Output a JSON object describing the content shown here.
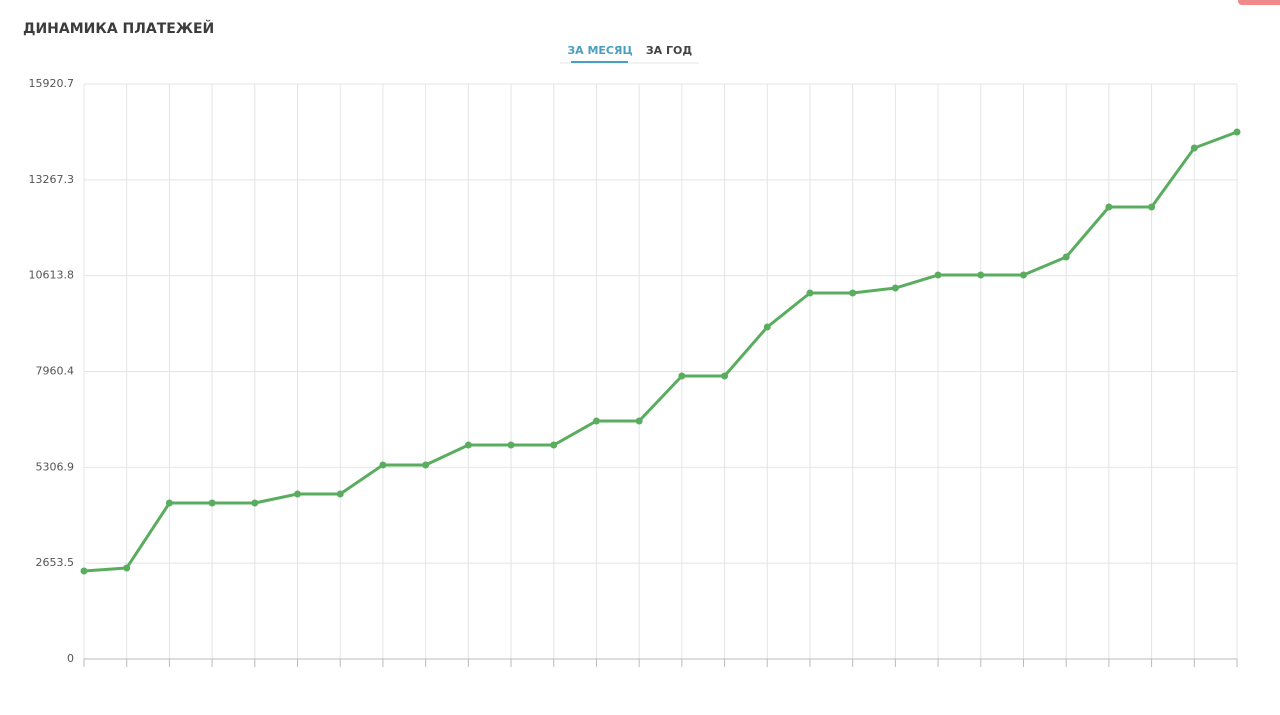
{
  "chart_data": {
    "type": "line",
    "title": "ДИНАМИКА ПЛАТЕЖЕЙ",
    "categories": [
      null,
      null,
      null,
      null,
      null,
      null,
      null,
      null,
      null,
      null,
      null,
      null,
      null,
      null,
      null,
      null,
      null,
      null,
      null,
      null,
      null,
      null,
      null,
      null,
      null,
      null,
      null,
      null
    ],
    "series": [
      {
        "color": "#5aad5f",
        "values": [
          2437,
          2520,
          4319,
          4319,
          4319,
          4569,
          4569,
          5372,
          5372,
          5925,
          5925,
          5925,
          6590,
          6590,
          7836,
          7836,
          9192,
          10134,
          10134,
          10272,
          10632,
          10632,
          10632,
          11131,
          12515,
          12515,
          14149,
          14592
        ]
      }
    ],
    "ylim": [
      0,
      15920.7
    ],
    "yticks": [
      0,
      2653.5,
      5306.9,
      7960.4,
      10613.8,
      13267.3,
      15920.7
    ],
    "grid": true
  },
  "tabs": [
    "ЗА МЕСЯЦ",
    "ЗА ГОД"
  ]
}
